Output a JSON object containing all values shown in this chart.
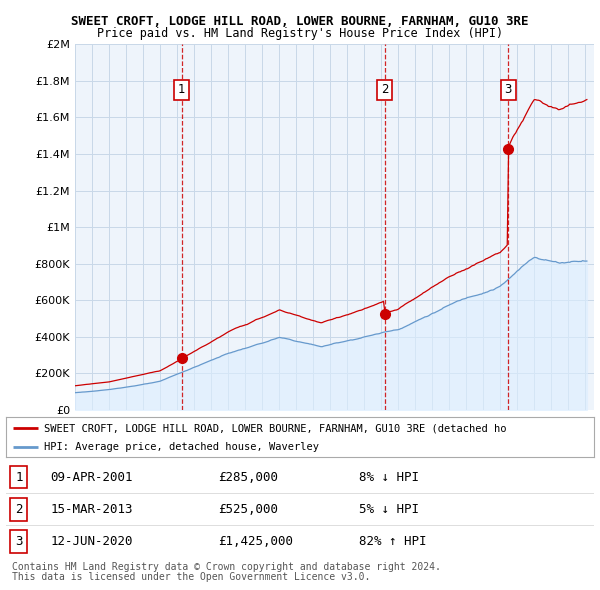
{
  "title": "SWEET CROFT, LODGE HILL ROAD, LOWER BOURNE, FARNHAM, GU10 3RE",
  "subtitle": "Price paid vs. HM Land Registry's House Price Index (HPI)",
  "ylim": [
    0,
    2000000
  ],
  "yticks": [
    0,
    200000,
    400000,
    600000,
    800000,
    1000000,
    1200000,
    1400000,
    1600000,
    1800000,
    2000000
  ],
  "ytick_labels": [
    "£0",
    "£200K",
    "£400K",
    "£600K",
    "£800K",
    "£1M",
    "£1.2M",
    "£1.4M",
    "£1.6M",
    "£1.8M",
    "£2M"
  ],
  "xlim_start": 1995.0,
  "xlim_end": 2025.5,
  "sales": [
    {
      "num": "1",
      "year": 2001.27,
      "price": 285000
    },
    {
      "num": "2",
      "year": 2013.21,
      "price": 525000
    },
    {
      "num": "3",
      "year": 2020.45,
      "price": 1425000
    }
  ],
  "sale_vline_color": "#cc0000",
  "property_line_color": "#cc0000",
  "hpi_line_color": "#6699cc",
  "hpi_fill_color": "#ddeeff",
  "background_color": "#ffffff",
  "plot_bg_color": "#eef4fb",
  "grid_color": "#c8d8e8",
  "legend_property": "SWEET CROFT, LODGE HILL ROAD, LOWER BOURNE, FARNHAM, GU10 3RE (detached ho",
  "legend_hpi": "HPI: Average price, detached house, Waverley",
  "table_rows": [
    {
      "num": "1",
      "date": "09-APR-2001",
      "price": "£285,000",
      "hpi": "8% ↓ HPI"
    },
    {
      "num": "2",
      "date": "15-MAR-2013",
      "price": "£525,000",
      "hpi": "5% ↓ HPI"
    },
    {
      "num": "3",
      "date": "12-JUN-2020",
      "price": "£1,425,000",
      "hpi": "82% ↑ HPI"
    }
  ],
  "footnote1": "Contains HM Land Registry data © Crown copyright and database right 2024.",
  "footnote2": "This data is licensed under the Open Government Licence v3.0."
}
